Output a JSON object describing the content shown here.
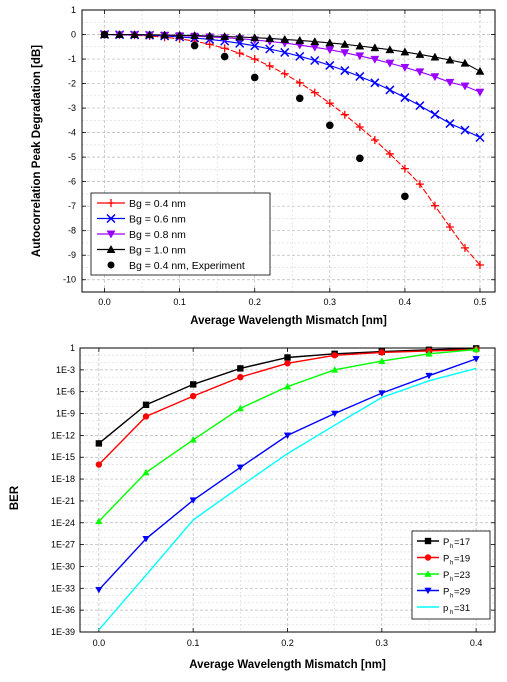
{
  "chart_data": [
    {
      "type": "line",
      "xlabel": "Average Wavelength Mismatch [nm]",
      "ylabel": "Autocorrelation Peak Degradation [dB]",
      "xlim": [
        -0.03,
        0.52
      ],
      "ylim": [
        -10.5,
        1
      ],
      "x_ticks": [
        "0.0",
        "0.1",
        "0.2",
        "0.3",
        "0.4",
        "0.5"
      ],
      "y_ticks": [
        "1",
        "0",
        "-1",
        "-2",
        "-3",
        "-4",
        "-5",
        "-6",
        "-7",
        "-8",
        "-9",
        "-10"
      ],
      "grid": true,
      "legend_position": "bottom-left",
      "series": [
        {
          "name": "Bg = 0.4 nm",
          "color": "#ff0000",
          "marker": "plus",
          "x": [
            0,
            0.02,
            0.04,
            0.06,
            0.08,
            0.1,
            0.12,
            0.14,
            0.16,
            0.18,
            0.2,
            0.22,
            0.24,
            0.26,
            0.28,
            0.3,
            0.32,
            0.34,
            0.36,
            0.38,
            0.4,
            0.42,
            0.44,
            0.46,
            0.48,
            0.5
          ],
          "y": [
            0,
            -0.01,
            -0.03,
            -0.06,
            -0.11,
            -0.18,
            -0.27,
            -0.4,
            -0.56,
            -0.76,
            -1.0,
            -1.28,
            -1.6,
            -1.97,
            -2.37,
            -2.8,
            -3.27,
            -3.77,
            -4.3,
            -4.87,
            -5.47,
            -6.1,
            -6.98,
            -7.85,
            -8.7,
            -9.4
          ]
        },
        {
          "name": "Bg = 0.6 nm",
          "color": "#0000ff",
          "marker": "x",
          "x": [
            0,
            0.02,
            0.04,
            0.06,
            0.08,
            0.1,
            0.12,
            0.14,
            0.16,
            0.18,
            0.2,
            0.22,
            0.24,
            0.26,
            0.28,
            0.3,
            0.32,
            0.34,
            0.36,
            0.38,
            0.4,
            0.42,
            0.44,
            0.46,
            0.48,
            0.5
          ],
          "y": [
            0,
            -0.01,
            -0.02,
            -0.03,
            -0.06,
            -0.1,
            -0.14,
            -0.2,
            -0.27,
            -0.36,
            -0.46,
            -0.59,
            -0.73,
            -0.89,
            -1.06,
            -1.26,
            -1.47,
            -1.71,
            -1.97,
            -2.26,
            -2.57,
            -2.9,
            -3.26,
            -3.63,
            -3.9,
            -4.2
          ]
        },
        {
          "name": "Bg = 0.8 nm",
          "color": "#9900ff",
          "marker": "triangle-down",
          "x": [
            0,
            0.02,
            0.04,
            0.06,
            0.08,
            0.1,
            0.12,
            0.14,
            0.16,
            0.18,
            0.2,
            0.22,
            0.24,
            0.26,
            0.28,
            0.3,
            0.32,
            0.34,
            0.36,
            0.38,
            0.4,
            0.42,
            0.44,
            0.46,
            0.48,
            0.5
          ],
          "y": [
            0,
            -0.01,
            -0.01,
            -0.02,
            -0.03,
            -0.05,
            -0.07,
            -0.1,
            -0.13,
            -0.17,
            -0.22,
            -0.28,
            -0.35,
            -0.43,
            -0.52,
            -0.62,
            -0.74,
            -0.87,
            -1.01,
            -1.17,
            -1.34,
            -1.52,
            -1.72,
            -1.95,
            -2.1,
            -2.35
          ]
        },
        {
          "name": "Bg = 1.0 nm",
          "color": "#000000",
          "marker": "triangle-up",
          "x": [
            0,
            0.02,
            0.04,
            0.06,
            0.08,
            0.1,
            0.12,
            0.14,
            0.16,
            0.18,
            0.2,
            0.22,
            0.24,
            0.26,
            0.28,
            0.3,
            0.32,
            0.34,
            0.36,
            0.38,
            0.4,
            0.42,
            0.44,
            0.46,
            0.48,
            0.5
          ],
          "y": [
            0,
            0,
            0,
            -0.01,
            -0.02,
            -0.03,
            -0.04,
            -0.06,
            -0.08,
            -0.1,
            -0.13,
            -0.16,
            -0.2,
            -0.24,
            -0.29,
            -0.34,
            -0.4,
            -0.47,
            -0.54,
            -0.62,
            -0.71,
            -0.81,
            -0.92,
            -1.04,
            -1.17,
            -1.5
          ]
        },
        {
          "name": "Bg = 0.4 nm, Experiment",
          "color": "#000000",
          "marker": "circle",
          "line": false,
          "x": [
            0,
            0.12,
            0.16,
            0.2,
            0.26,
            0.3,
            0.34,
            0.4
          ],
          "y": [
            0,
            -0.45,
            -0.9,
            -1.75,
            -2.6,
            -3.7,
            -5.05,
            -6.6
          ]
        }
      ]
    },
    {
      "type": "line",
      "xlabel": "Average Wavelength Mismatch [nm]",
      "ylabel": "BER",
      "ylog": true,
      "xlim": [
        -0.02,
        0.42
      ],
      "ylim_exp": [
        -39,
        0
      ],
      "x_ticks": [
        "0.0",
        "0.1",
        "0.2",
        "0.3",
        "0.4"
      ],
      "y_ticks": [
        "1",
        "1E-3",
        "1E-6",
        "1E-9",
        "1E-12",
        "1E-15",
        "1E-18",
        "1E-21",
        "1E-24",
        "1E-27",
        "1E-30",
        "1E-33",
        "1E-36",
        "1E-39"
      ],
      "grid": true,
      "legend_position": "bottom-right",
      "series": [
        {
          "name": "P",
          "sub": "h",
          "suffix": "=17",
          "color": "#000000",
          "marker": "square",
          "x": [
            0,
            0.05,
            0.1,
            0.15,
            0.2,
            0.25,
            0.3,
            0.35,
            0.4
          ],
          "log10_y": [
            -13.1,
            -7.8,
            -5.0,
            -2.8,
            -1.3,
            -0.8,
            -0.5,
            -0.25,
            -0.05
          ]
        },
        {
          "name": "P",
          "sub": "h",
          "suffix": "=19",
          "color": "#ff0000",
          "marker": "circle",
          "x": [
            0,
            0.05,
            0.1,
            0.15,
            0.2,
            0.25,
            0.3,
            0.35,
            0.4
          ],
          "log10_y": [
            -16.0,
            -9.4,
            -6.6,
            -4.0,
            -2.1,
            -1.0,
            -0.6,
            -0.4,
            -0.2
          ]
        },
        {
          "name": "P",
          "sub": "h",
          "suffix": "=23",
          "color": "#00ff00",
          "marker": "triangle-up",
          "x": [
            0,
            0.05,
            0.1,
            0.15,
            0.2,
            0.25,
            0.3,
            0.35,
            0.4
          ],
          "log10_y": [
            -23.8,
            -17.1,
            -12.6,
            -8.3,
            -5.3,
            -3.0,
            -1.8,
            -0.8,
            -0.2
          ]
        },
        {
          "name": "P",
          "sub": "h",
          "suffix": "=29",
          "color": "#0000ff",
          "marker": "triangle-down",
          "x": [
            0,
            0.05,
            0.1,
            0.15,
            0.2,
            0.25,
            0.3,
            0.35,
            0.4
          ],
          "log10_y": [
            -33.2,
            -26.2,
            -20.9,
            -16.4,
            -12.0,
            -9.0,
            -6.2,
            -3.8,
            -1.5
          ]
        },
        {
          "name": "p",
          "sub": "h",
          "suffix": "=31",
          "color": "#00ffff",
          "marker": "none",
          "x": [
            0,
            0.05,
            0.1,
            0.15,
            0.2,
            0.25,
            0.3,
            0.35,
            0.4
          ],
          "log10_y": [
            -38.7,
            -31.2,
            -23.6,
            -19.0,
            -14.5,
            -10.6,
            -6.8,
            -4.5,
            -2.8
          ]
        }
      ]
    }
  ]
}
